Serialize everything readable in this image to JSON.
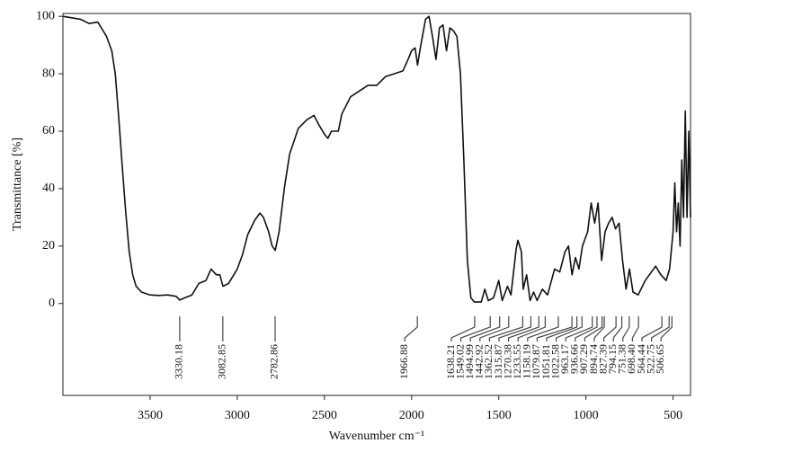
{
  "chart_data": {
    "type": "line",
    "xlabel": "Wavenumber cm⁻¹",
    "ylabel": "Transmittance [%]",
    "xlim": [
      4000,
      400
    ],
    "ylim": [
      -32,
      101
    ],
    "xticks": [
      3500,
      3000,
      2500,
      2000,
      1500,
      1000,
      500
    ],
    "yticks": [
      0,
      20,
      40,
      60,
      80,
      100
    ],
    "grid": false,
    "series": [
      {
        "name": null,
        "color": "#111111",
        "x": [
          4000,
          3900,
          3850,
          3800,
          3780,
          3750,
          3720,
          3700,
          3680,
          3660,
          3640,
          3620,
          3600,
          3580,
          3550,
          3500,
          3450,
          3400,
          3350,
          3330,
          3300,
          3260,
          3220,
          3180,
          3150,
          3120,
          3100,
          3082,
          3050,
          3000,
          2970,
          2940,
          2900,
          2870,
          2850,
          2820,
          2800,
          2782,
          2760,
          2730,
          2700,
          2650,
          2600,
          2560,
          2530,
          2500,
          2480,
          2460,
          2420,
          2400,
          2350,
          2300,
          2250,
          2200,
          2150,
          2100,
          2050,
          2020,
          2000,
          1980,
          1966,
          1950,
          1920,
          1900,
          1880,
          1860,
          1840,
          1820,
          1800,
          1780,
          1760,
          1740,
          1720,
          1700,
          1680,
          1660,
          1640,
          1600,
          1580,
          1560,
          1530,
          1500,
          1480,
          1450,
          1430,
          1400,
          1390,
          1370,
          1360,
          1340,
          1320,
          1300,
          1280,
          1250,
          1220,
          1180,
          1150,
          1120,
          1100,
          1080,
          1060,
          1040,
          1020,
          990,
          970,
          950,
          930,
          910,
          890,
          870,
          850,
          830,
          810,
          790,
          770,
          750,
          730,
          700,
          660,
          600,
          570,
          540,
          520,
          500,
          490,
          480,
          470,
          460,
          450,
          440,
          430,
          420,
          410,
          400
        ],
        "values": [
          100,
          99,
          97.5,
          98,
          96,
          93,
          88,
          80,
          65,
          48,
          32,
          18,
          10,
          6,
          4,
          3,
          2.8,
          3,
          2.5,
          1.2,
          2,
          3,
          7,
          8,
          12,
          10,
          10,
          6,
          7,
          12,
          17,
          24,
          29,
          31.5,
          30,
          25,
          20,
          18.5,
          25,
          40,
          52,
          61,
          64,
          65.5,
          62,
          59,
          57.5,
          60,
          60,
          66,
          72,
          74,
          76,
          76,
          79,
          80,
          81,
          85,
          88,
          89,
          83,
          89,
          99,
          100,
          93,
          85,
          96,
          97,
          88,
          96,
          95,
          93,
          80,
          50,
          15,
          2,
          0.5,
          0.5,
          5,
          1,
          2,
          8,
          1,
          6,
          3,
          19,
          22,
          18,
          5,
          10,
          1,
          4,
          1,
          5,
          3,
          12,
          11,
          18,
          20,
          10,
          16,
          12,
          20,
          25,
          35,
          28,
          35,
          15,
          25,
          28,
          30,
          26,
          28,
          15,
          5,
          12,
          4,
          3,
          8,
          13,
          10,
          8,
          12,
          25,
          42,
          25,
          35,
          20,
          50,
          30,
          67,
          30,
          60,
          30
        ]
      }
    ],
    "peaks": [
      {
        "value": 3330.18,
        "label": "3330.18"
      },
      {
        "value": 3082.85,
        "label": "3082.85"
      },
      {
        "value": 2782.86,
        "label": "2782.86"
      },
      {
        "value": 1966.88,
        "label": "1966.88"
      },
      {
        "value": 1638.21,
        "label": "1638.21"
      },
      {
        "value": 1549.02,
        "label": "1549.02"
      },
      {
        "value": 1494.99,
        "label": "1494.99"
      },
      {
        "value": 1442.92,
        "label": "1442.92"
      },
      {
        "value": 1362.52,
        "label": "1362.52"
      },
      {
        "value": 1315.87,
        "label": "1315.87"
      },
      {
        "value": 1270.38,
        "label": "1270.38"
      },
      {
        "value": 1233.55,
        "label": "1233.55"
      },
      {
        "value": 1158.19,
        "label": "1158.19"
      },
      {
        "value": 1079.87,
        "label": "1079.87"
      },
      {
        "value": 1051.81,
        "label": "1051.81"
      },
      {
        "value": 1022.58,
        "label": "1022.58"
      },
      {
        "value": 963.17,
        "label": "963.17"
      },
      {
        "value": 936.66,
        "label": "936.66"
      },
      {
        "value": 907.29,
        "label": "907.29"
      },
      {
        "value": 894.74,
        "label": "894.74"
      },
      {
        "value": 827.39,
        "label": "827.39"
      },
      {
        "value": 794.15,
        "label": "794.15"
      },
      {
        "value": 751.38,
        "label": "751.38"
      },
      {
        "value": 698.4,
        "label": "698.40"
      },
      {
        "value": 564.44,
        "label": "564.44"
      },
      {
        "value": 522.75,
        "label": "522.75"
      },
      {
        "value": 506.65,
        "label": "506.65"
      }
    ]
  }
}
